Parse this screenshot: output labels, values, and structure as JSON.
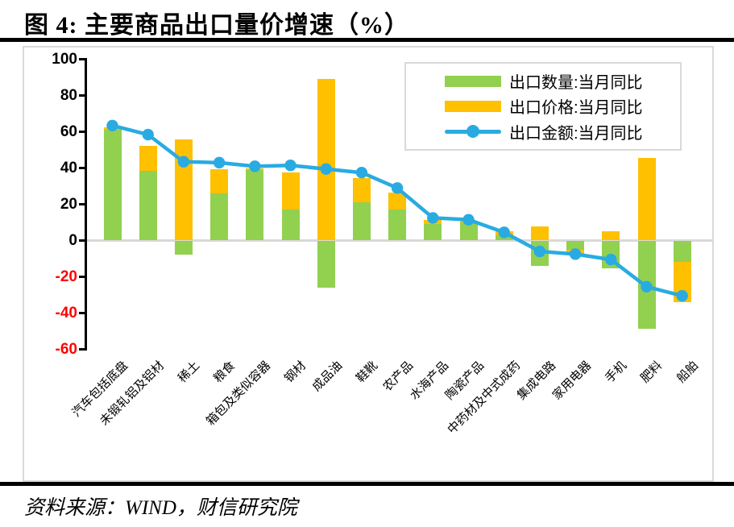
{
  "page": {
    "title": "图 4:  主要商品出口量价增速（%）",
    "source": "资料来源：WIND，财信研究院"
  },
  "colors": {
    "quantity_bar": "#92d050",
    "price_bar": "#ffc000",
    "value_line": "#29abe2",
    "negative_tick_label": "#ff0000",
    "gridline": "#d9d9d9",
    "axis": "#000000"
  },
  "legend": {
    "items": [
      {
        "label": "出口数量:当月同比",
        "type": "bar",
        "color": "#92d050"
      },
      {
        "label": "出口价格:当月同比",
        "type": "bar",
        "color": "#ffc000"
      },
      {
        "label": "出口金额:当月同比",
        "type": "line",
        "color": "#29abe2"
      }
    ]
  },
  "chart_data": {
    "type": "bar",
    "subtype": "stacked-bars-with-line",
    "title": "图 4:  主要商品出口量价增速（%）",
    "xlabel": "",
    "ylabel": "",
    "ylim": [
      -60,
      100
    ],
    "yticks": [
      100,
      80,
      60,
      40,
      20,
      0,
      -20,
      -40,
      -60
    ],
    "grid": "zero-line-only",
    "legend_position": "top-right-inside",
    "categories": [
      "汽车包括底盘",
      "未锻轧铝及铝材",
      "稀土",
      "粮食",
      "箱包及类似容器",
      "钢材",
      "成品油",
      "鞋靴",
      "农产品",
      "水海产品",
      "陶瓷产品",
      "中药材及中式成药",
      "集成电路",
      "家用电器",
      "手机",
      "肥料",
      "船舶"
    ],
    "series": [
      {
        "name": "出口数量:当月同比",
        "type": "bar",
        "color": "#92d050",
        "values": [
          61,
          38.5,
          -8,
          26,
          39,
          17,
          -26,
          21,
          17,
          9,
          10,
          3,
          -14,
          -5,
          -15.5,
          -48.5,
          -12
        ]
      },
      {
        "name": "出口价格:当月同比",
        "type": "bar",
        "color": "#ffc000",
        "values": [
          1.5,
          14,
          56,
          13.5,
          1,
          20.5,
          89,
          13.5,
          9.5,
          2.5,
          1,
          2,
          8,
          -3,
          5,
          45.5,
          -22
        ]
      },
      {
        "name": "出口金额:当月同比",
        "type": "line",
        "color": "#29abe2",
        "values": [
          63.5,
          58.5,
          43.5,
          43,
          41,
          41.5,
          39.5,
          37.5,
          29,
          12.5,
          11.5,
          4.5,
          -6,
          -7.5,
          -10.5,
          -25.5,
          -30.5
        ]
      }
    ]
  }
}
